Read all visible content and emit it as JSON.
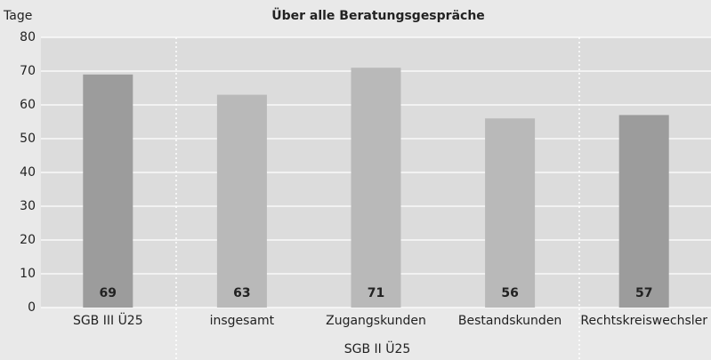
{
  "chart_data": {
    "type": "bar",
    "title": "Über alle Beratungsgespräche",
    "y_label": "Tage",
    "categories": [
      "SGB III Ü25",
      "insgesamt",
      "Zugangskunden",
      "Bestandskunden",
      "Rechtskreiswechsler"
    ],
    "values": [
      69,
      63,
      71,
      56,
      57
    ],
    "colors": [
      "#9c9c9c",
      "#b9b9b9",
      "#b9b9b9",
      "#b9b9b9",
      "#9c9c9c"
    ],
    "group_label": "SGB II Ü25",
    "ylim": [
      0,
      80
    ],
    "yticks": [
      0,
      10,
      20,
      30,
      40,
      50,
      60,
      70,
      80
    ],
    "grid": true
  }
}
